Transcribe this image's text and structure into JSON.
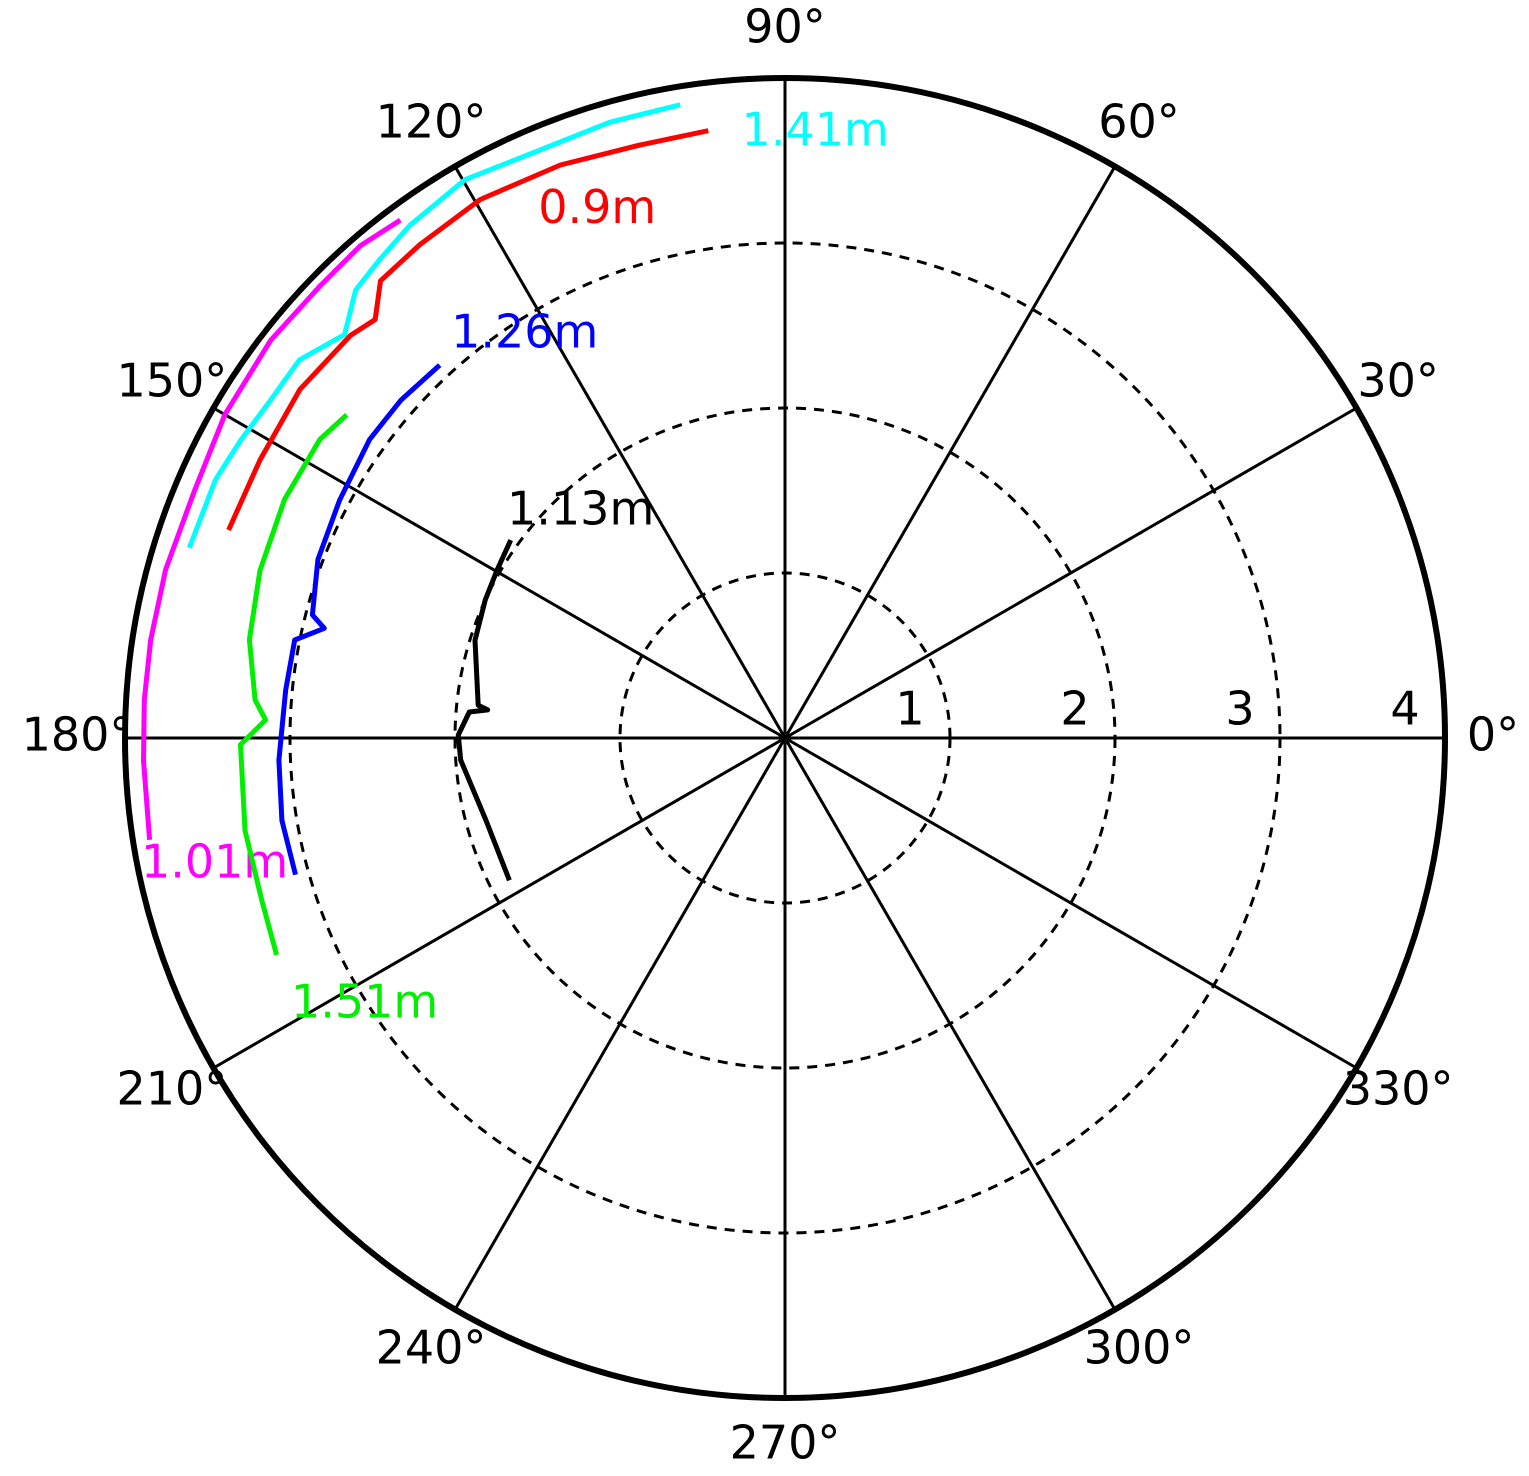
{
  "chart_data": {
    "type": "polar",
    "rlim": [
      0,
      4
    ],
    "rticks": [
      1,
      2,
      3,
      4
    ],
    "thetaticks": [
      {
        "value": 0,
        "label": "0°"
      },
      {
        "value": 30,
        "label": "30°"
      },
      {
        "value": 60,
        "label": "60°"
      },
      {
        "value": 90,
        "label": "90°"
      },
      {
        "value": 120,
        "label": "120°"
      },
      {
        "value": 150,
        "label": "150°"
      },
      {
        "value": 180,
        "label": "180°"
      },
      {
        "value": 210,
        "label": "210°"
      },
      {
        "value": 240,
        "label": "240°"
      },
      {
        "value": 270,
        "label": "270°"
      },
      {
        "value": 300,
        "label": "300°"
      },
      {
        "value": 330,
        "label": "330°"
      }
    ],
    "series": [
      {
        "name": "1.41m",
        "color": "#00ffff",
        "theta": [
          162.3,
          155.6,
          151.3,
          146.7,
          142.1,
          137.5,
          133.8,
          130.3,
          126.2,
          119.8,
          112.6,
          105.9,
          99.4
        ],
        "r": [
          3.79,
          3.79,
          3.76,
          3.73,
          3.73,
          3.62,
          3.76,
          3.8,
          3.85,
          3.9,
          3.86,
          3.88,
          3.89
        ]
      },
      {
        "name": "0.9m",
        "color": "#ff0000",
        "theta": [
          159.5,
          152.1,
          144.3,
          137.2,
          134.4,
          131.5,
          126.5,
          119.5,
          111.4,
          103.7,
          97.2
        ],
        "r": [
          3.6,
          3.6,
          3.62,
          3.59,
          3.55,
          3.7,
          3.72,
          3.75,
          3.73,
          3.7,
          3.71
        ]
      },
      {
        "name": "1.26m",
        "color": "#0000ff",
        "theta": [
          195.6,
          189.3,
          182.5,
          174.5,
          168.7,
          166.6,
          165.4,
          159.1,
          151.9,
          144.3,
          138.7,
          132.8
        ],
        "r": [
          3.08,
          3.09,
          3.07,
          3.04,
          3.03,
          2.87,
          2.96,
          3.03,
          3.06,
          3.1,
          3.1,
          3.08
        ]
      },
      {
        "name": "1.13m",
        "color": "#000000",
        "theta": [
          207.3,
          195.3,
          183.9,
          179.5,
          175.3,
          174.6,
          173.9,
          162.5,
          155.3,
          149.7,
          144.2
        ],
        "r": [
          1.88,
          1.88,
          1.97,
          1.98,
          1.92,
          1.81,
          1.87,
          1.97,
          2.0,
          2.02,
          2.05
        ]
      },
      {
        "name": "1.01m",
        "color": "#ff00ff",
        "theta": [
          126.6,
          130.8,
          135.7,
          142.3,
          150.0,
          157.2,
          164.8,
          171.2,
          176.6,
          182.0,
          189.1
        ],
        "r": [
          3.91,
          3.94,
          3.93,
          3.94,
          3.92,
          3.88,
          3.89,
          3.89,
          3.89,
          3.89,
          3.9
        ]
      },
      {
        "name": "1.51m",
        "color": "#00ee00",
        "theta": [
          143.6,
          147.3,
          154.5,
          162.3,
          169.6,
          175.9,
          178.0,
          180.7,
          189.7,
          197.2,
          203.1
        ],
        "r": [
          3.3,
          3.35,
          3.36,
          3.34,
          3.3,
          3.22,
          3.15,
          3.3,
          3.32,
          3.32,
          3.35
        ]
      }
    ]
  }
}
